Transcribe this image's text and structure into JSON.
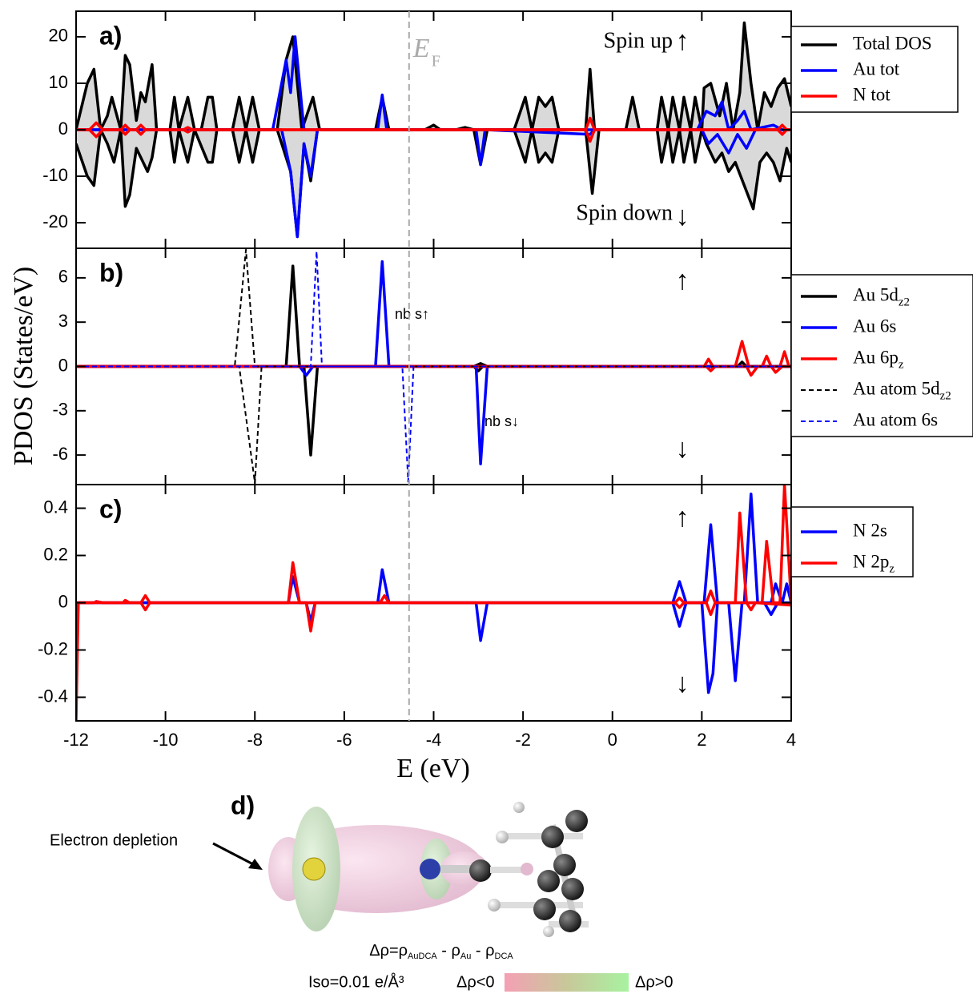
{
  "figure": {
    "ylabel": "PDOS (States/eV)",
    "xlabel": "E (eV)",
    "fermi": {
      "x": -4.55,
      "label": "E",
      "sub": "F"
    }
  },
  "chart_data": [
    {
      "type": "line",
      "panel_label": "a)",
      "xlim": [
        -12,
        4
      ],
      "ylim": [
        -25.5,
        25.5
      ],
      "yticks": [
        -20,
        -10,
        0,
        10,
        20
      ],
      "annotations": [
        "Spin up",
        "↑",
        "Spin down",
        "↓"
      ],
      "series": [
        {
          "name": "Total DOS",
          "color": "#000000",
          "fill": "#d9d9d9",
          "up": {
            "x": [
              -12,
              -11.75,
              -11.6,
              -11.45,
              -11.3,
              -11.2,
              -11.0,
              -10.9,
              -10.8,
              -10.65,
              -10.55,
              -10.45,
              -10.3,
              -10.2,
              -9.9,
              -9.8,
              -9.7,
              -9.5,
              -9.35,
              -9.2,
              -9.05,
              -8.95,
              -8.85,
              -8.5,
              -8.35,
              -8.2,
              -8.05,
              -7.9,
              -7.5,
              -7.3,
              -7.15,
              -6.95,
              -6.7,
              -6.55,
              -5.3,
              -5.15,
              -5.0,
              -4.2,
              -4.0,
              -3.85,
              -3.5,
              -3.3,
              -3.1,
              -2.2,
              -1.95,
              -1.8,
              -1.65,
              -1.5,
              -1.35,
              -1.2,
              -0.6,
              -0.5,
              -0.4,
              0.3,
              0.45,
              0.6,
              1.0,
              1.1,
              1.25,
              1.35,
              1.5,
              1.6,
              1.75,
              1.85,
              2.0,
              2.05,
              2.2,
              2.4,
              2.55,
              2.7,
              2.85,
              2.95,
              3.1,
              3.25,
              3.4,
              3.55,
              3.7,
              3.85,
              4
            ],
            "values": [
              0,
              10,
              13,
              0,
              3,
              7,
              0,
              16,
              14,
              2,
              8,
              6,
              14,
              0,
              0,
              7,
              0,
              7,
              0,
              0,
              7,
              7,
              0,
              0,
              7,
              0,
              7,
              0,
              0,
              15,
              20,
              0,
              7,
              0,
              0,
              7,
              0,
              0,
              1,
              0,
              0,
              0.5,
              0,
              0,
              7,
              0,
              7,
              5,
              7,
              0,
              0,
              13,
              0,
              0,
              7,
              0,
              0,
              7,
              0,
              7,
              0,
              7,
              0,
              7,
              0,
              9,
              10,
              3,
              10,
              0,
              8,
              23,
              10,
              0,
              8,
              5,
              9,
              11,
              5
            ]
          },
          "down": {
            "x": [
              -12,
              -11.75,
              -11.6,
              -11.45,
              -11.3,
              -11.15,
              -11.0,
              -10.9,
              -10.8,
              -10.65,
              -10.55,
              -10.4,
              -10.3,
              -10.2,
              -9.9,
              -9.8,
              -9.7,
              -9.5,
              -9.35,
              -9.05,
              -8.95,
              -8.85,
              -8.5,
              -8.35,
              -8.2,
              -8.05,
              -7.9,
              -7.5,
              -7.2,
              -7.05,
              -6.9,
              -6.75,
              -6.6,
              -3.1,
              -2.95,
              -2.8,
              -2.2,
              -1.95,
              -1.8,
              -1.65,
              -1.5,
              -1.35,
              -1.2,
              -0.6,
              -0.45,
              -0.3,
              1.0,
              1.1,
              1.25,
              1.35,
              1.5,
              1.6,
              1.75,
              1.85,
              2.0,
              2.1,
              2.3,
              2.45,
              2.6,
              2.75,
              2.95,
              3.15,
              3.3,
              3.45,
              3.6,
              3.75,
              3.9,
              4
            ],
            "values": [
              -3,
              -10,
              -12,
              0,
              -3,
              -7,
              0,
              -16.5,
              -14,
              -4,
              -6,
              -9,
              -6,
              0,
              0,
              -7,
              0,
              -7,
              0,
              -7,
              -7,
              0,
              0,
              -7,
              0,
              -7,
              0,
              0,
              -9,
              -23,
              -3,
              -11,
              0,
              0,
              -7.5,
              0,
              0,
              -7,
              0,
              -7,
              -5,
              -7,
              0,
              0,
              -13.7,
              0,
              0,
              -7,
              0,
              -7,
              0,
              -7,
              0,
              -7,
              0,
              -3,
              -7,
              -5,
              -9,
              -7,
              -12,
              -17,
              -7,
              -5,
              -7,
              -11,
              -4,
              -7
            ]
          }
        },
        {
          "name": "Au tot",
          "color": "#0000ff",
          "up": {
            "x": [
              -12,
              -7.6,
              -7.3,
              -7.2,
              -7.1,
              -6.9,
              -5.25,
              -5.15,
              -5.05,
              1.9,
              2.1,
              2.3,
              2.45,
              2.6,
              2.8,
              2.95,
              3.1,
              3.6,
              3.8,
              4
            ],
            "values": [
              0,
              0,
              15,
              8,
              20,
              0,
              0,
              7.5,
              0,
              0,
              4,
              3,
              6,
              0,
              2,
              4,
              0,
              1,
              0,
              0
            ]
          },
          "down": {
            "x": [
              -12,
              -7.4,
              -7.2,
              -7.05,
              -6.9,
              -6.75,
              -6.6,
              -3.05,
              -2.95,
              -2.85,
              -0.5,
              -0.4,
              2.0,
              2.15,
              2.35,
              2.6,
              2.8,
              3.0,
              3.2,
              4
            ],
            "values": [
              0,
              0,
              -9,
              -23,
              -3,
              -10,
              0,
              0,
              -7.5,
              0,
              -1,
              0,
              0,
              -3,
              -1,
              -5,
              -1,
              -4,
              0,
              0
            ]
          }
        },
        {
          "name": "N tot",
          "color": "#ff0000",
          "up": {
            "x": [
              -12,
              -11.7,
              -11.55,
              -11.4,
              -11,
              -10.9,
              -10.8,
              -10.65,
              -10.55,
              -10.45,
              -9.6,
              -9.5,
              -9.4,
              -0.6,
              -0.5,
              -0.4,
              3.7,
              3.8,
              3.9,
              4
            ],
            "values": [
              0,
              0,
              1.5,
              0,
              0,
              1,
              0,
              0,
              1,
              0,
              0,
              0.5,
              0,
              0,
              2.5,
              0,
              0,
              1,
              0,
              0
            ]
          },
          "down": {
            "x": [
              -12,
              -11.7,
              -11.55,
              -11.4,
              -11,
              -10.9,
              -10.8,
              -10.65,
              -10.55,
              -10.45,
              -9.6,
              -9.5,
              -9.4,
              -0.6,
              -0.5,
              -0.4,
              3.7,
              3.8,
              3.9,
              4
            ],
            "values": [
              0,
              0,
              -1.5,
              0,
              0,
              -1,
              0,
              0,
              -1,
              0,
              0,
              -0.5,
              0,
              0,
              -2.5,
              0,
              0,
              -1,
              0,
              0
            ]
          }
        }
      ]
    },
    {
      "type": "line",
      "panel_label": "b)",
      "xlim": [
        -12,
        4
      ],
      "ylim": [
        -8,
        8
      ],
      "yticks": [
        -6,
        -3,
        0,
        3,
        6
      ],
      "annotations": [
        "↑",
        "↓",
        "nb s↑",
        "nb s↓"
      ],
      "series": [
        {
          "name": "Au 5d",
          "name_sub": "z2",
          "color": "#000000",
          "up": {
            "x": [
              -12,
              -7.3,
              -7.15,
              -7.0,
              -3.1,
              -2.95,
              -2.8,
              2.8,
              2.9,
              3.0,
              4
            ],
            "values": [
              0,
              0,
              6.8,
              0,
              0,
              0.2,
              0,
              0,
              0.3,
              0,
              0
            ]
          },
          "down": {
            "x": [
              -12,
              -6.9,
              -6.75,
              -6.6,
              -3.1,
              -3.0,
              -2.9,
              4
            ],
            "values": [
              0,
              0,
              -6,
              0,
              0,
              -0.3,
              0,
              0
            ]
          }
        },
        {
          "name": "Au 6s",
          "color": "#0000ff",
          "up": {
            "x": [
              -12,
              -5.3,
              -5.15,
              -5.0,
              4
            ],
            "values": [
              0,
              0,
              7.1,
              0,
              0
            ]
          },
          "down": {
            "x": [
              -12,
              -7.0,
              -6.85,
              -6.7,
              -3.05,
              -2.95,
              -2.8,
              4
            ],
            "values": [
              0,
              0,
              -0.6,
              0,
              0,
              -6.6,
              0,
              0
            ]
          }
        },
        {
          "name": "Au 6p",
          "name_sub": "z",
          "color": "#ff0000",
          "up": {
            "x": [
              -12,
              2.05,
              2.15,
              2.25,
              2.75,
              2.9,
              3.05,
              3.35,
              3.45,
              3.55,
              3.75,
              3.85,
              3.95,
              4
            ],
            "values": [
              0,
              0,
              0.5,
              0,
              0,
              1.7,
              0,
              0,
              0.7,
              0,
              0,
              1,
              0,
              0
            ]
          },
          "down": {
            "x": [
              -12,
              2.1,
              2.2,
              2.3,
              3.0,
              3.1,
              3.25,
              3.55,
              3.65,
              3.8,
              4
            ],
            "values": [
              0,
              0,
              -0.3,
              0,
              0,
              -0.6,
              0,
              0,
              -0.4,
              0,
              0
            ]
          }
        },
        {
          "name": "Au atom 5d",
          "name_sub": "z2",
          "color": "#000000",
          "dash": true,
          "up": {
            "x": [
              -12,
              -8.45,
              -8.2,
              -8.0,
              4
            ],
            "values": [
              0,
              0,
              7.9,
              0,
              0
            ]
          },
          "down": {
            "x": [
              -12,
              -8.35,
              -8.0,
              -7.85,
              4
            ],
            "values": [
              0,
              0,
              -7.9,
              0,
              0
            ]
          }
        },
        {
          "name": "Au atom 6s",
          "color": "#0000ff",
          "dash": true,
          "up": {
            "x": [
              -12,
              -6.75,
              -6.62,
              -6.5,
              4
            ],
            "values": [
              0,
              0,
              7.8,
              0,
              0
            ]
          },
          "down": {
            "x": [
              -12,
              -4.7,
              -4.57,
              -4.45,
              4
            ],
            "values": [
              0,
              0,
              -7.8,
              0,
              0
            ]
          }
        }
      ]
    },
    {
      "type": "line",
      "panel_label": "c)",
      "xlim": [
        -12,
        4
      ],
      "ylim": [
        -0.5,
        0.5
      ],
      "yticks": [
        -0.4,
        -0.2,
        0,
        0.2,
        0.4
      ],
      "xticks": [
        -12,
        -10,
        -8,
        -6,
        -4,
        -2,
        0,
        2,
        4
      ],
      "annotations": [
        "↑",
        "↓"
      ],
      "series": [
        {
          "name": "N 2s",
          "color": "#0000ff",
          "up": {
            "x": [
              -12,
              -11.6,
              -11.55,
              -11.4,
              -7.25,
              -7.15,
              -7.0,
              -5.25,
              -5.15,
              -5.0,
              1.35,
              1.5,
              1.65,
              2.05,
              2.2,
              2.35,
              2.95,
              3.1,
              3.25,
              3.55,
              3.65,
              3.8,
              3.9,
              4
            ],
            "values": [
              0,
              0,
              0.005,
              0,
              0,
              0.11,
              0,
              0,
              0.14,
              0,
              0,
              0.09,
              0,
              0,
              0.33,
              0,
              0,
              0.46,
              0,
              0,
              0.08,
              0,
              0.08,
              0
            ]
          },
          "down": {
            "x": [
              -12,
              -11.95,
              -6.85,
              -6.75,
              -6.65,
              -3.05,
              -2.95,
              -2.8,
              1.35,
              1.5,
              1.65,
              2.0,
              2.15,
              2.25,
              2.35,
              2.6,
              2.75,
              2.9,
              3.4,
              3.55,
              3.7,
              4
            ],
            "values": [
              -0.2,
              0,
              0,
              -0.08,
              0,
              0,
              -0.16,
              0,
              0,
              -0.1,
              0,
              0,
              -0.38,
              -0.3,
              0,
              0,
              -0.33,
              0,
              0,
              -0.05,
              0,
              0
            ]
          }
        },
        {
          "name": "N 2p",
          "name_sub": "z",
          "color": "#ff0000",
          "up": {
            "x": [
              -12,
              -11.6,
              -11.55,
              -11.4,
              -10.95,
              -10.9,
              -10.8,
              -10.55,
              -10.45,
              -10.35,
              -7.25,
              -7.15,
              -7.0,
              -5.2,
              -5.1,
              -5.0,
              1.4,
              1.5,
              1.6,
              2.1,
              2.2,
              2.3,
              2.75,
              2.85,
              3.0,
              3.35,
              3.45,
              3.6,
              3.75,
              3.85,
              4
            ],
            "values": [
              0,
              0,
              0.005,
              0,
              0,
              0.01,
              0,
              0,
              0.03,
              0,
              0,
              0.17,
              0,
              0,
              0.03,
              0,
              0,
              0.02,
              0,
              0,
              0.05,
              0,
              0,
              0.38,
              0,
              0,
              0.26,
              0,
              0,
              0.5,
              0
            ]
          },
          "down": {
            "x": [
              -12,
              -11.95,
              -10.55,
              -10.45,
              -10.35,
              -6.85,
              -6.75,
              -6.65,
              1.4,
              1.5,
              1.6,
              2.1,
              2.2,
              2.3,
              3.0,
              3.1,
              3.2,
              4
            ],
            "values": [
              -0.5,
              0,
              0,
              -0.03,
              0,
              0,
              -0.12,
              0,
              0,
              -0.02,
              0,
              0,
              -0.05,
              0,
              0,
              -0.03,
              0,
              -0.01
            ]
          }
        }
      ]
    }
  ],
  "panel_d": {
    "label": "d)",
    "note": "Electron depletion",
    "formula": [
      "Δρ=ρ",
      "AuDCA",
      " - ρ",
      "Au",
      " - ρ",
      "DCA"
    ],
    "iso": "Iso=0.01 e/Å³",
    "neg": "Δρ<0",
    "pos": "Δρ>0"
  }
}
